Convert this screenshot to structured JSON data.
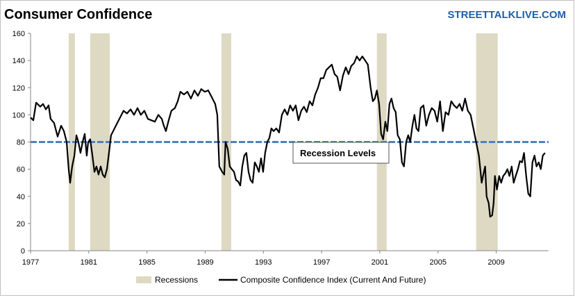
{
  "chart_data": {
    "type": "line",
    "title": "Consumer Confidence",
    "watermark": "STREETTALKLIVE.COM",
    "annotation": "Recession Levels",
    "xlim": [
      1977,
      2012.6
    ],
    "ylim": [
      0,
      160
    ],
    "xticks": [
      1977,
      1981,
      1985,
      1989,
      1993,
      1997,
      2001,
      2005,
      2009
    ],
    "yticks": [
      0,
      20,
      40,
      60,
      80,
      100,
      120,
      140,
      160
    ],
    "grid": false,
    "legend": "bottom",
    "reference_line": {
      "value": 80,
      "color": "#4f81bd"
    },
    "recessions": {
      "name": "Recessions",
      "color": "#ddd9c3",
      "ranges": [
        [
          1979.62,
          1980.05
        ],
        [
          1981.1,
          1982.44
        ],
        [
          1990.12,
          1990.79
        ],
        [
          2000.8,
          2001.47
        ],
        [
          2007.62,
          2009.1
        ]
      ]
    },
    "x": [
      1977.0,
      1977.19,
      1977.38,
      1977.67,
      1977.86,
      1978.05,
      1978.24,
      1978.38,
      1978.62,
      1978.86,
      1979.1,
      1979.29,
      1979.48,
      1979.62,
      1979.72,
      1979.86,
      1980.01,
      1980.15,
      1980.29,
      1980.43,
      1980.58,
      1980.72,
      1980.86,
      1980.96,
      1981.1,
      1981.25,
      1981.39,
      1981.53,
      1981.67,
      1981.82,
      1981.96,
      1982.1,
      1982.25,
      1982.39,
      1982.53,
      1982.68,
      1982.91,
      1983.15,
      1983.39,
      1983.63,
      1983.87,
      1984.11,
      1984.35,
      1984.58,
      1984.82,
      1985.06,
      1985.3,
      1985.54,
      1985.78,
      1986.02,
      1986.16,
      1986.3,
      1986.49,
      1986.68,
      1986.92,
      1987.11,
      1987.3,
      1987.54,
      1987.78,
      1988.02,
      1988.26,
      1988.5,
      1988.73,
      1988.97,
      1989.21,
      1989.45,
      1989.69,
      1989.83,
      1989.97,
      1990.17,
      1990.31,
      1990.4,
      1990.55,
      1990.69,
      1990.83,
      1990.98,
      1991.12,
      1991.26,
      1991.41,
      1991.55,
      1991.69,
      1991.83,
      1991.98,
      1992.12,
      1992.26,
      1992.41,
      1992.55,
      1992.69,
      1992.84,
      1992.98,
      1993.12,
      1993.27,
      1993.41,
      1993.55,
      1993.7,
      1993.89,
      1994.08,
      1994.27,
      1994.46,
      1994.65,
      1994.84,
      1995.03,
      1995.22,
      1995.41,
      1995.6,
      1995.79,
      1995.98,
      1996.18,
      1996.37,
      1996.56,
      1996.75,
      1996.94,
      1997.13,
      1997.32,
      1997.51,
      1997.7,
      1997.89,
      1998.08,
      1998.27,
      1998.47,
      1998.66,
      1998.85,
      1999.04,
      1999.23,
      1999.42,
      1999.61,
      1999.8,
      1999.99,
      2000.18,
      2000.37,
      2000.52,
      2000.66,
      2000.8,
      2000.95,
      2001.09,
      2001.23,
      2001.38,
      2001.52,
      2001.66,
      2001.8,
      2001.95,
      2002.09,
      2002.23,
      2002.38,
      2002.52,
      2002.66,
      2002.81,
      2002.95,
      2003.09,
      2003.24,
      2003.38,
      2003.52,
      2003.66,
      2003.81,
      2004.0,
      2004.19,
      2004.38,
      2004.57,
      2004.76,
      2004.95,
      2005.14,
      2005.33,
      2005.52,
      2005.72,
      2005.91,
      2006.1,
      2006.29,
      2006.48,
      2006.67,
      2006.86,
      2007.05,
      2007.24,
      2007.43,
      2007.62,
      2007.81,
      2008.0,
      2008.15,
      2008.24,
      2008.34,
      2008.48,
      2008.58,
      2008.72,
      2008.82,
      2008.91,
      2009.05,
      2009.2,
      2009.34,
      2009.48,
      2009.63,
      2009.77,
      2009.91,
      2010.06,
      2010.2,
      2010.34,
      2010.49,
      2010.63,
      2010.77,
      2010.91,
      2011.06,
      2011.2,
      2011.34,
      2011.49,
      2011.63,
      2011.77,
      2011.92,
      2012.06,
      2012.2,
      2012.35
    ],
    "series": [
      {
        "name": "Composite Confidence Index (Current And Future)",
        "color": "#000000",
        "values": [
          98,
          96,
          109,
          106,
          108,
          104,
          107,
          97,
          94,
          84,
          92,
          88,
          80,
          60,
          50,
          62,
          70,
          85,
          80,
          72,
          80,
          86,
          70,
          80,
          82,
          70,
          58,
          62,
          56,
          62,
          56,
          54,
          60,
          72,
          85,
          88,
          93,
          98,
          103,
          101,
          104,
          100,
          105,
          100,
          103,
          97,
          96,
          95,
          100,
          97,
          92,
          88,
          96,
          103,
          105,
          110,
          117,
          115,
          117,
          112,
          118,
          114,
          119,
          117,
          118,
          113,
          108,
          100,
          62,
          58,
          56,
          80,
          75,
          62,
          60,
          58,
          52,
          51,
          48,
          62,
          70,
          72,
          58,
          52,
          50,
          65,
          62,
          58,
          68,
          58,
          72,
          80,
          83,
          90,
          88,
          90,
          87,
          100,
          104,
          100,
          107,
          103,
          107,
          96,
          103,
          106,
          102,
          110,
          107,
          115,
          120,
          127,
          127,
          133,
          135,
          137,
          130,
          128,
          118,
          129,
          135,
          130,
          136,
          138,
          143,
          140,
          143,
          140,
          137,
          120,
          110,
          112,
          118,
          108,
          86,
          82,
          95,
          88,
          108,
          112,
          105,
          102,
          85,
          82,
          65,
          62,
          80,
          85,
          80,
          92,
          100,
          90,
          88,
          105,
          107,
          92,
          100,
          105,
          103,
          95,
          110,
          88,
          102,
          100,
          110,
          107,
          105,
          108,
          103,
          112,
          103,
          100,
          90,
          80,
          70,
          50,
          58,
          62,
          40,
          35,
          25,
          26,
          35,
          55,
          45,
          55,
          50,
          55,
          57,
          60,
          55,
          62,
          50,
          55,
          60,
          66,
          65,
          72,
          55,
          42,
          40,
          65,
          70,
          62,
          65,
          60,
          70,
          72
        ]
      }
    ]
  }
}
